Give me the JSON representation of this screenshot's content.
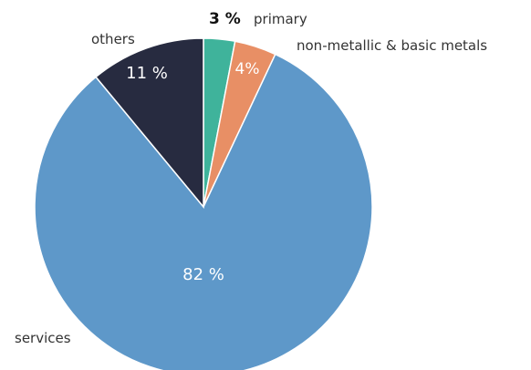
{
  "chart_data": {
    "type": "pie",
    "slices": [
      {
        "name": "primary",
        "value": 3,
        "label": "3 %",
        "color": "#3fb39b"
      },
      {
        "name": "non-metallic & basic metals",
        "value": 4,
        "label": "4%",
        "color": "#e88f65"
      },
      {
        "name": "services",
        "value": 82,
        "label": "82 %",
        "color": "#5e98c9"
      },
      {
        "name": "others",
        "value": 11,
        "label": "11 %",
        "color": "#272b40"
      }
    ],
    "start_angle_deg": 0,
    "direction": "clockwise",
    "legend": "none"
  }
}
